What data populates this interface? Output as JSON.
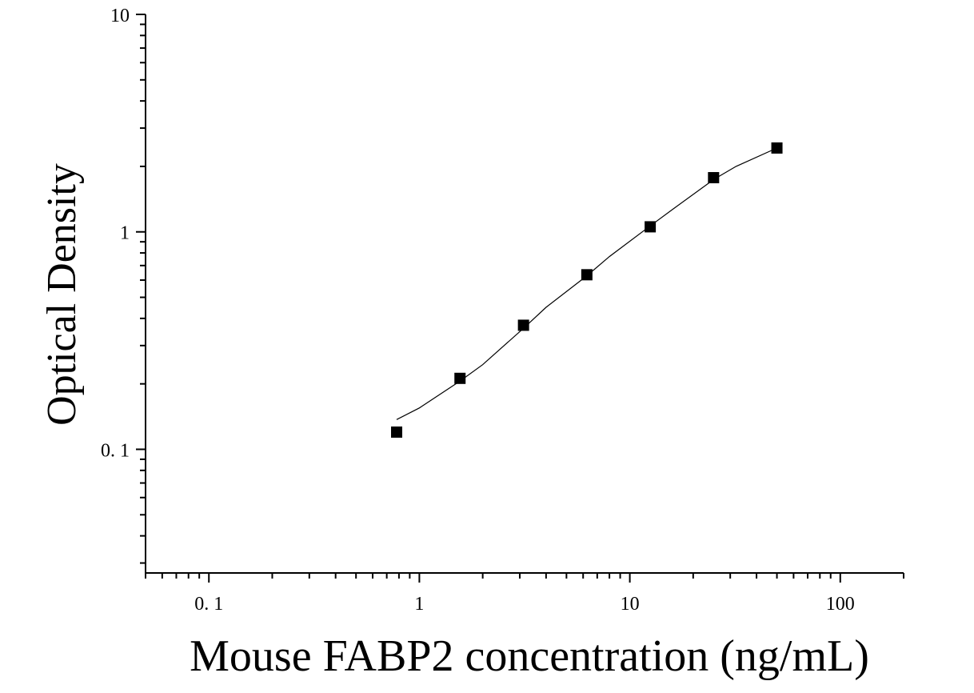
{
  "chart_data": {
    "type": "scatter",
    "xlabel": "Mouse FABP2 concentration (ng/mL)",
    "ylabel": "Optical Density",
    "x_scale": "log",
    "y_scale": "log",
    "xlim": [
      0.05,
      200
    ],
    "ylim": [
      0.027,
      10
    ],
    "x_ticks": [
      {
        "value": 0.1,
        "label": "0. 1"
      },
      {
        "value": 1,
        "label": "1"
      },
      {
        "value": 10,
        "label": "10"
      },
      {
        "value": 100,
        "label": "100"
      }
    ],
    "y_ticks": [
      {
        "value": 0.1,
        "label": "0. 1"
      },
      {
        "value": 1,
        "label": "1"
      },
      {
        "value": 10,
        "label": "10"
      }
    ],
    "grid": false,
    "legend": "none",
    "marker": "square",
    "color": "#000000",
    "series": [
      {
        "x": [
          0.78,
          1.56,
          3.125,
          6.25,
          12.5,
          25,
          50
        ],
        "y": [
          0.12,
          0.212,
          0.372,
          0.635,
          1.055,
          1.775,
          2.43
        ]
      }
    ],
    "fit_curve": {
      "x": [
        0.78,
        1.0,
        1.56,
        2.0,
        3.125,
        4.0,
        6.25,
        8.0,
        12.5,
        16.0,
        25,
        32,
        50
      ],
      "y": [
        0.137,
        0.155,
        0.206,
        0.245,
        0.36,
        0.45,
        0.628,
        0.77,
        1.065,
        1.27,
        1.74,
        2.0,
        2.43
      ]
    }
  }
}
